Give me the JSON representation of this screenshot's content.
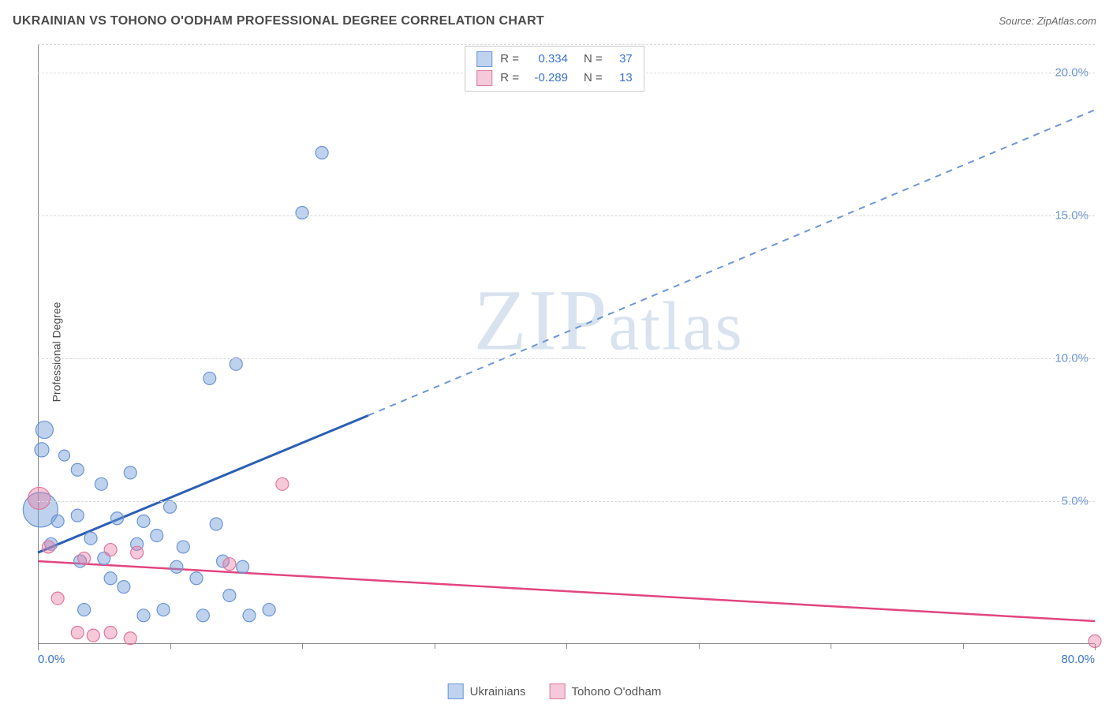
{
  "title": "UKRAINIAN VS TOHONO O'ODHAM PROFESSIONAL DEGREE CORRELATION CHART",
  "source_label": "Source: ",
  "source_name": "ZipAtlas.com",
  "ylabel": "Professional Degree",
  "watermark": {
    "big": "ZIP",
    "small": "atlas"
  },
  "chart": {
    "type": "scatter",
    "xlim": [
      0,
      80
    ],
    "ylim": [
      0,
      21
    ],
    "x_ticks_major": [
      0,
      80
    ],
    "x_ticks_minor": [
      10,
      20,
      30,
      40,
      50,
      60,
      70
    ],
    "y_ticks": [
      5,
      10,
      15,
      20
    ],
    "x_tick_labels": {
      "0": "0.0%",
      "80": "80.0%"
    },
    "y_tick_labels": {
      "5": "5.0%",
      "10": "10.0%",
      "15": "15.0%",
      "20": "20.0%"
    },
    "grid_color": "#d9d9d9",
    "axis_color": "#888888",
    "tick_label_color_x0": "#3b74c9",
    "tick_label_color_x80": "#3b74c9",
    "tick_label_color_y": "#6c95d6",
    "background_color": "#ffffff"
  },
  "series": [
    {
      "name": "Ukrainians",
      "color_fill": "rgba(110,155,216,0.45)",
      "color_stroke": "#6c95d6",
      "swatch_fill": "#bfd3ef",
      "swatch_border": "#6c95d6",
      "points": [
        {
          "x": 0.2,
          "y": 4.7,
          "r": 22
        },
        {
          "x": 0.5,
          "y": 7.5,
          "r": 11
        },
        {
          "x": 0.3,
          "y": 6.8,
          "r": 9
        },
        {
          "x": 2.0,
          "y": 6.6,
          "r": 7
        },
        {
          "x": 1.5,
          "y": 4.3,
          "r": 8
        },
        {
          "x": 1.0,
          "y": 3.5,
          "r": 8
        },
        {
          "x": 3.0,
          "y": 6.1,
          "r": 8
        },
        {
          "x": 3.0,
          "y": 4.5,
          "r": 8
        },
        {
          "x": 3.2,
          "y": 2.9,
          "r": 8
        },
        {
          "x": 3.5,
          "y": 1.2,
          "r": 8
        },
        {
          "x": 4.0,
          "y": 3.7,
          "r": 8
        },
        {
          "x": 4.8,
          "y": 5.6,
          "r": 8
        },
        {
          "x": 5.0,
          "y": 3.0,
          "r": 8
        },
        {
          "x": 5.5,
          "y": 2.3,
          "r": 8
        },
        {
          "x": 6.0,
          "y": 4.4,
          "r": 8
        },
        {
          "x": 6.5,
          "y": 2.0,
          "r": 8
        },
        {
          "x": 7.0,
          "y": 6.0,
          "r": 8
        },
        {
          "x": 7.5,
          "y": 3.5,
          "r": 8
        },
        {
          "x": 8.0,
          "y": 4.3,
          "r": 8
        },
        {
          "x": 8.0,
          "y": 1.0,
          "r": 8
        },
        {
          "x": 9.0,
          "y": 3.8,
          "r": 8
        },
        {
          "x": 10.0,
          "y": 4.8,
          "r": 8
        },
        {
          "x": 10.5,
          "y": 2.7,
          "r": 8
        },
        {
          "x": 11.0,
          "y": 3.4,
          "r": 8
        },
        {
          "x": 12.0,
          "y": 2.3,
          "r": 8
        },
        {
          "x": 12.5,
          "y": 1.0,
          "r": 8
        },
        {
          "x": 13.0,
          "y": 9.3,
          "r": 8
        },
        {
          "x": 13.5,
          "y": 4.2,
          "r": 8
        },
        {
          "x": 14.0,
          "y": 2.9,
          "r": 8
        },
        {
          "x": 14.5,
          "y": 1.7,
          "r": 8
        },
        {
          "x": 15.0,
          "y": 9.8,
          "r": 8
        },
        {
          "x": 15.5,
          "y": 2.7,
          "r": 8
        },
        {
          "x": 16.0,
          "y": 1.0,
          "r": 8
        },
        {
          "x": 17.5,
          "y": 1.2,
          "r": 8
        },
        {
          "x": 20.0,
          "y": 15.1,
          "r": 8
        },
        {
          "x": 21.5,
          "y": 17.2,
          "r": 8
        },
        {
          "x": 9.5,
          "y": 1.2,
          "r": 8
        }
      ],
      "trend": {
        "solid": {
          "x1": 0,
          "y1": 3.2,
          "x2": 25,
          "y2": 8.0
        },
        "dashed": {
          "x1": 25,
          "y1": 8.0,
          "x2": 80,
          "y2": 18.7
        },
        "stroke_solid": "#2b5fb5",
        "stroke_dashed": "#6c95d6",
        "width_solid": 3,
        "width_dashed": 2
      }
    },
    {
      "name": "Tohono O'odham",
      "color_fill": "rgba(232,120,160,0.40)",
      "color_stroke": "#e176a0",
      "swatch_fill": "#f4c9d9",
      "swatch_border": "#e176a0",
      "points": [
        {
          "x": 0.1,
          "y": 5.1,
          "r": 14
        },
        {
          "x": 0.8,
          "y": 3.4,
          "r": 8
        },
        {
          "x": 1.5,
          "y": 1.6,
          "r": 8
        },
        {
          "x": 3.0,
          "y": 0.4,
          "r": 8
        },
        {
          "x": 3.5,
          "y": 3.0,
          "r": 8
        },
        {
          "x": 4.2,
          "y": 0.3,
          "r": 8
        },
        {
          "x": 5.5,
          "y": 0.4,
          "r": 8
        },
        {
          "x": 5.5,
          "y": 3.3,
          "r": 8
        },
        {
          "x": 7.0,
          "y": 0.2,
          "r": 8
        },
        {
          "x": 7.5,
          "y": 3.2,
          "r": 8
        },
        {
          "x": 14.5,
          "y": 2.8,
          "r": 8
        },
        {
          "x": 18.5,
          "y": 5.6,
          "r": 8
        },
        {
          "x": 80.0,
          "y": 0.1,
          "r": 8
        }
      ],
      "trend": {
        "solid": {
          "x1": 0,
          "y1": 2.9,
          "x2": 80,
          "y2": 0.8
        },
        "stroke_solid": "#e2457f",
        "width_solid": 2.5
      }
    }
  ],
  "stats": [
    {
      "swatch_fill": "#bfd3ef",
      "swatch_border": "#6c95d6",
      "r": "0.334",
      "n": "37"
    },
    {
      "swatch_fill": "#f4c9d9",
      "swatch_border": "#e176a0",
      "r": "-0.289",
      "n": "13"
    }
  ],
  "stats_labels": {
    "r": "R",
    "n": "N",
    "eq": "="
  },
  "legend": [
    {
      "label": "Ukrainians",
      "swatch_fill": "#bfd3ef",
      "swatch_border": "#6c95d6"
    },
    {
      "label": "Tohono O'odham",
      "swatch_fill": "#f4c9d9",
      "swatch_border": "#e176a0"
    }
  ]
}
